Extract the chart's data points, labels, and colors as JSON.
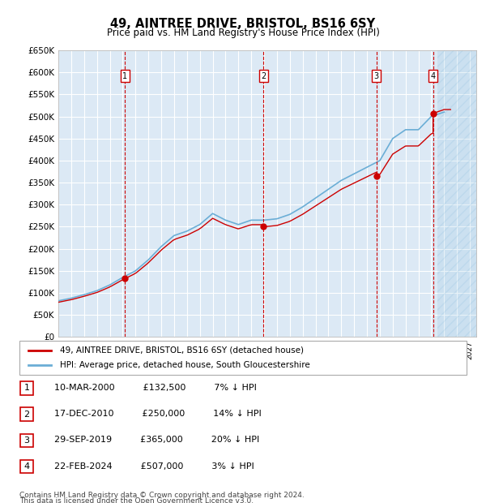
{
  "title": "49, AINTREE DRIVE, BRISTOL, BS16 6SY",
  "subtitle": "Price paid vs. HM Land Registry's House Price Index (HPI)",
  "ylabel": "",
  "ylim": [
    0,
    650000
  ],
  "yticks": [
    0,
    50000,
    100000,
    150000,
    200000,
    250000,
    300000,
    350000,
    400000,
    450000,
    500000,
    550000,
    600000,
    650000
  ],
  "xlim_start": 1995.0,
  "xlim_end": 2027.5,
  "background_color": "#ffffff",
  "chart_bg_color": "#dce9f5",
  "grid_color": "#ffffff",
  "sales": [
    {
      "label": "1",
      "date_num": 2000.19,
      "price": 132500,
      "date_str": "10-MAR-2000",
      "pct": "7%"
    },
    {
      "label": "2",
      "date_num": 2010.96,
      "price": 250000,
      "date_str": "17-DEC-2010",
      "pct": "14%"
    },
    {
      "label": "3",
      "date_num": 2019.74,
      "price": 365000,
      "date_str": "29-SEP-2019",
      "pct": "20%"
    },
    {
      "label": "4",
      "date_num": 2024.14,
      "price": 507000,
      "date_str": "22-FEB-2024",
      "pct": "3%"
    }
  ],
  "hpi_color": "#6baed6",
  "sale_color": "#cc0000",
  "legend_line1": "49, AINTREE DRIVE, BRISTOL, BS16 6SY (detached house)",
  "legend_line2": "HPI: Average price, detached house, South Gloucestershire",
  "footer1": "Contains HM Land Registry data © Crown copyright and database right 2024.",
  "footer2": "This data is licensed under the Open Government Licence v3.0."
}
